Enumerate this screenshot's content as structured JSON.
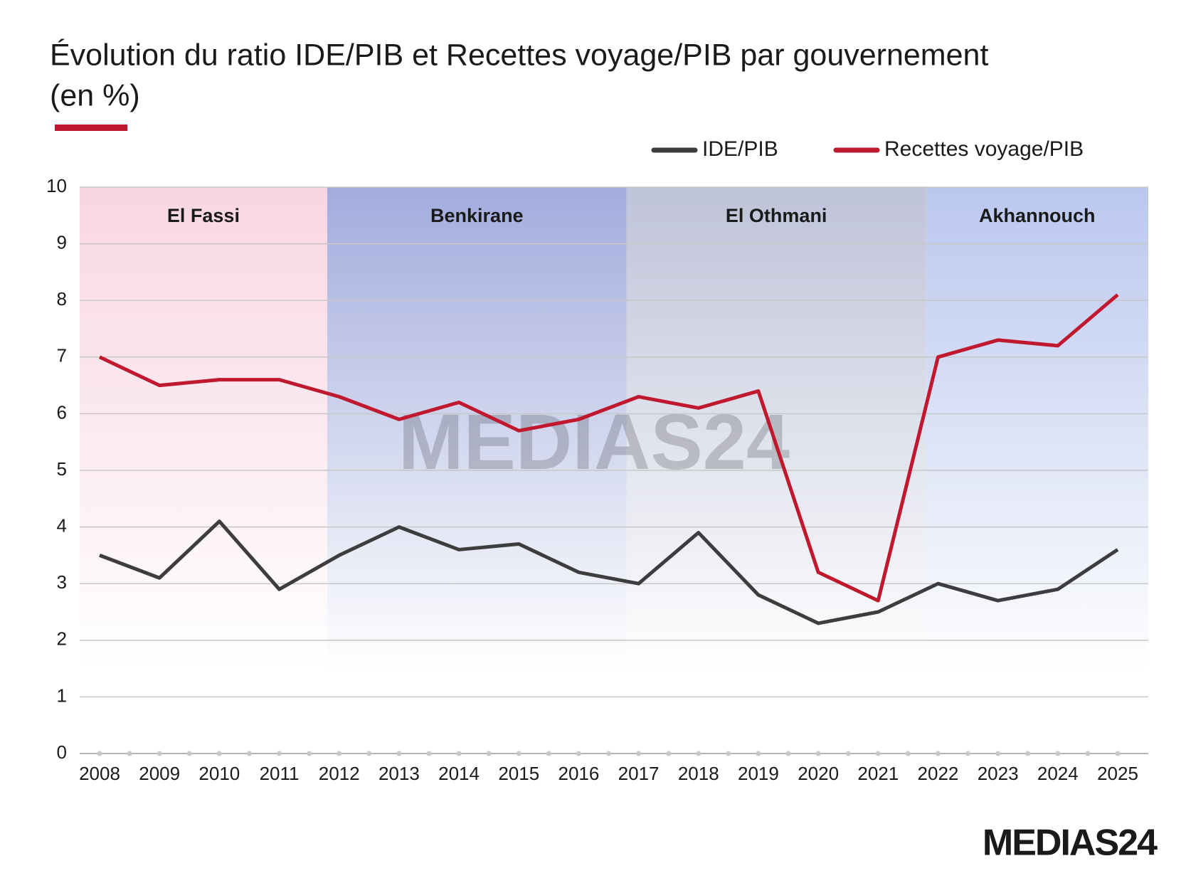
{
  "chart_data": {
    "type": "line",
    "title": "Évolution du ratio IDE/PIB et Recettes voyage/PIB par gouvernement",
    "subtitle": "(en %)",
    "x": [
      "2008",
      "2009",
      "2010",
      "2011",
      "2012",
      "2013",
      "2014",
      "2015",
      "2016",
      "2017",
      "2018",
      "2019",
      "2020",
      "2021",
      "2022",
      "2023",
      "2024",
      "2025"
    ],
    "series": [
      {
        "name": "IDE/PIB",
        "color": "#3d3d3f",
        "values": [
          3.5,
          3.1,
          4.1,
          2.9,
          3.5,
          4.0,
          3.6,
          3.7,
          3.2,
          3.0,
          3.9,
          2.8,
          2.3,
          2.5,
          3.0,
          2.7,
          2.9,
          3.6
        ]
      },
      {
        "name": "Recettes voyage/PIB",
        "color": "#c0192f",
        "values": [
          7.0,
          6.5,
          6.6,
          6.6,
          6.3,
          5.9,
          6.2,
          5.7,
          5.9,
          6.3,
          6.1,
          6.4,
          3.2,
          2.7,
          7.0,
          7.3,
          7.2,
          8.1
        ]
      }
    ],
    "periods": [
      {
        "label": "El Fassi",
        "start": "2008",
        "end": "2011",
        "color": "#f8d6e2"
      },
      {
        "label": "Benkirane",
        "start": "2012",
        "end": "2016",
        "color": "#a2acdd"
      },
      {
        "label": "El Othmani",
        "start": "2017",
        "end": "2021",
        "color": "#bfc3d8"
      },
      {
        "label": "Akhannouch",
        "start": "2022",
        "end": "2025",
        "color": "#bac7ee"
      }
    ],
    "ylim": [
      0,
      10
    ],
    "yticks": [
      0,
      1,
      2,
      3,
      4,
      5,
      6,
      7,
      8,
      9,
      10
    ],
    "grid": true,
    "legend": "top-right",
    "logo": "MEDIAS24"
  }
}
